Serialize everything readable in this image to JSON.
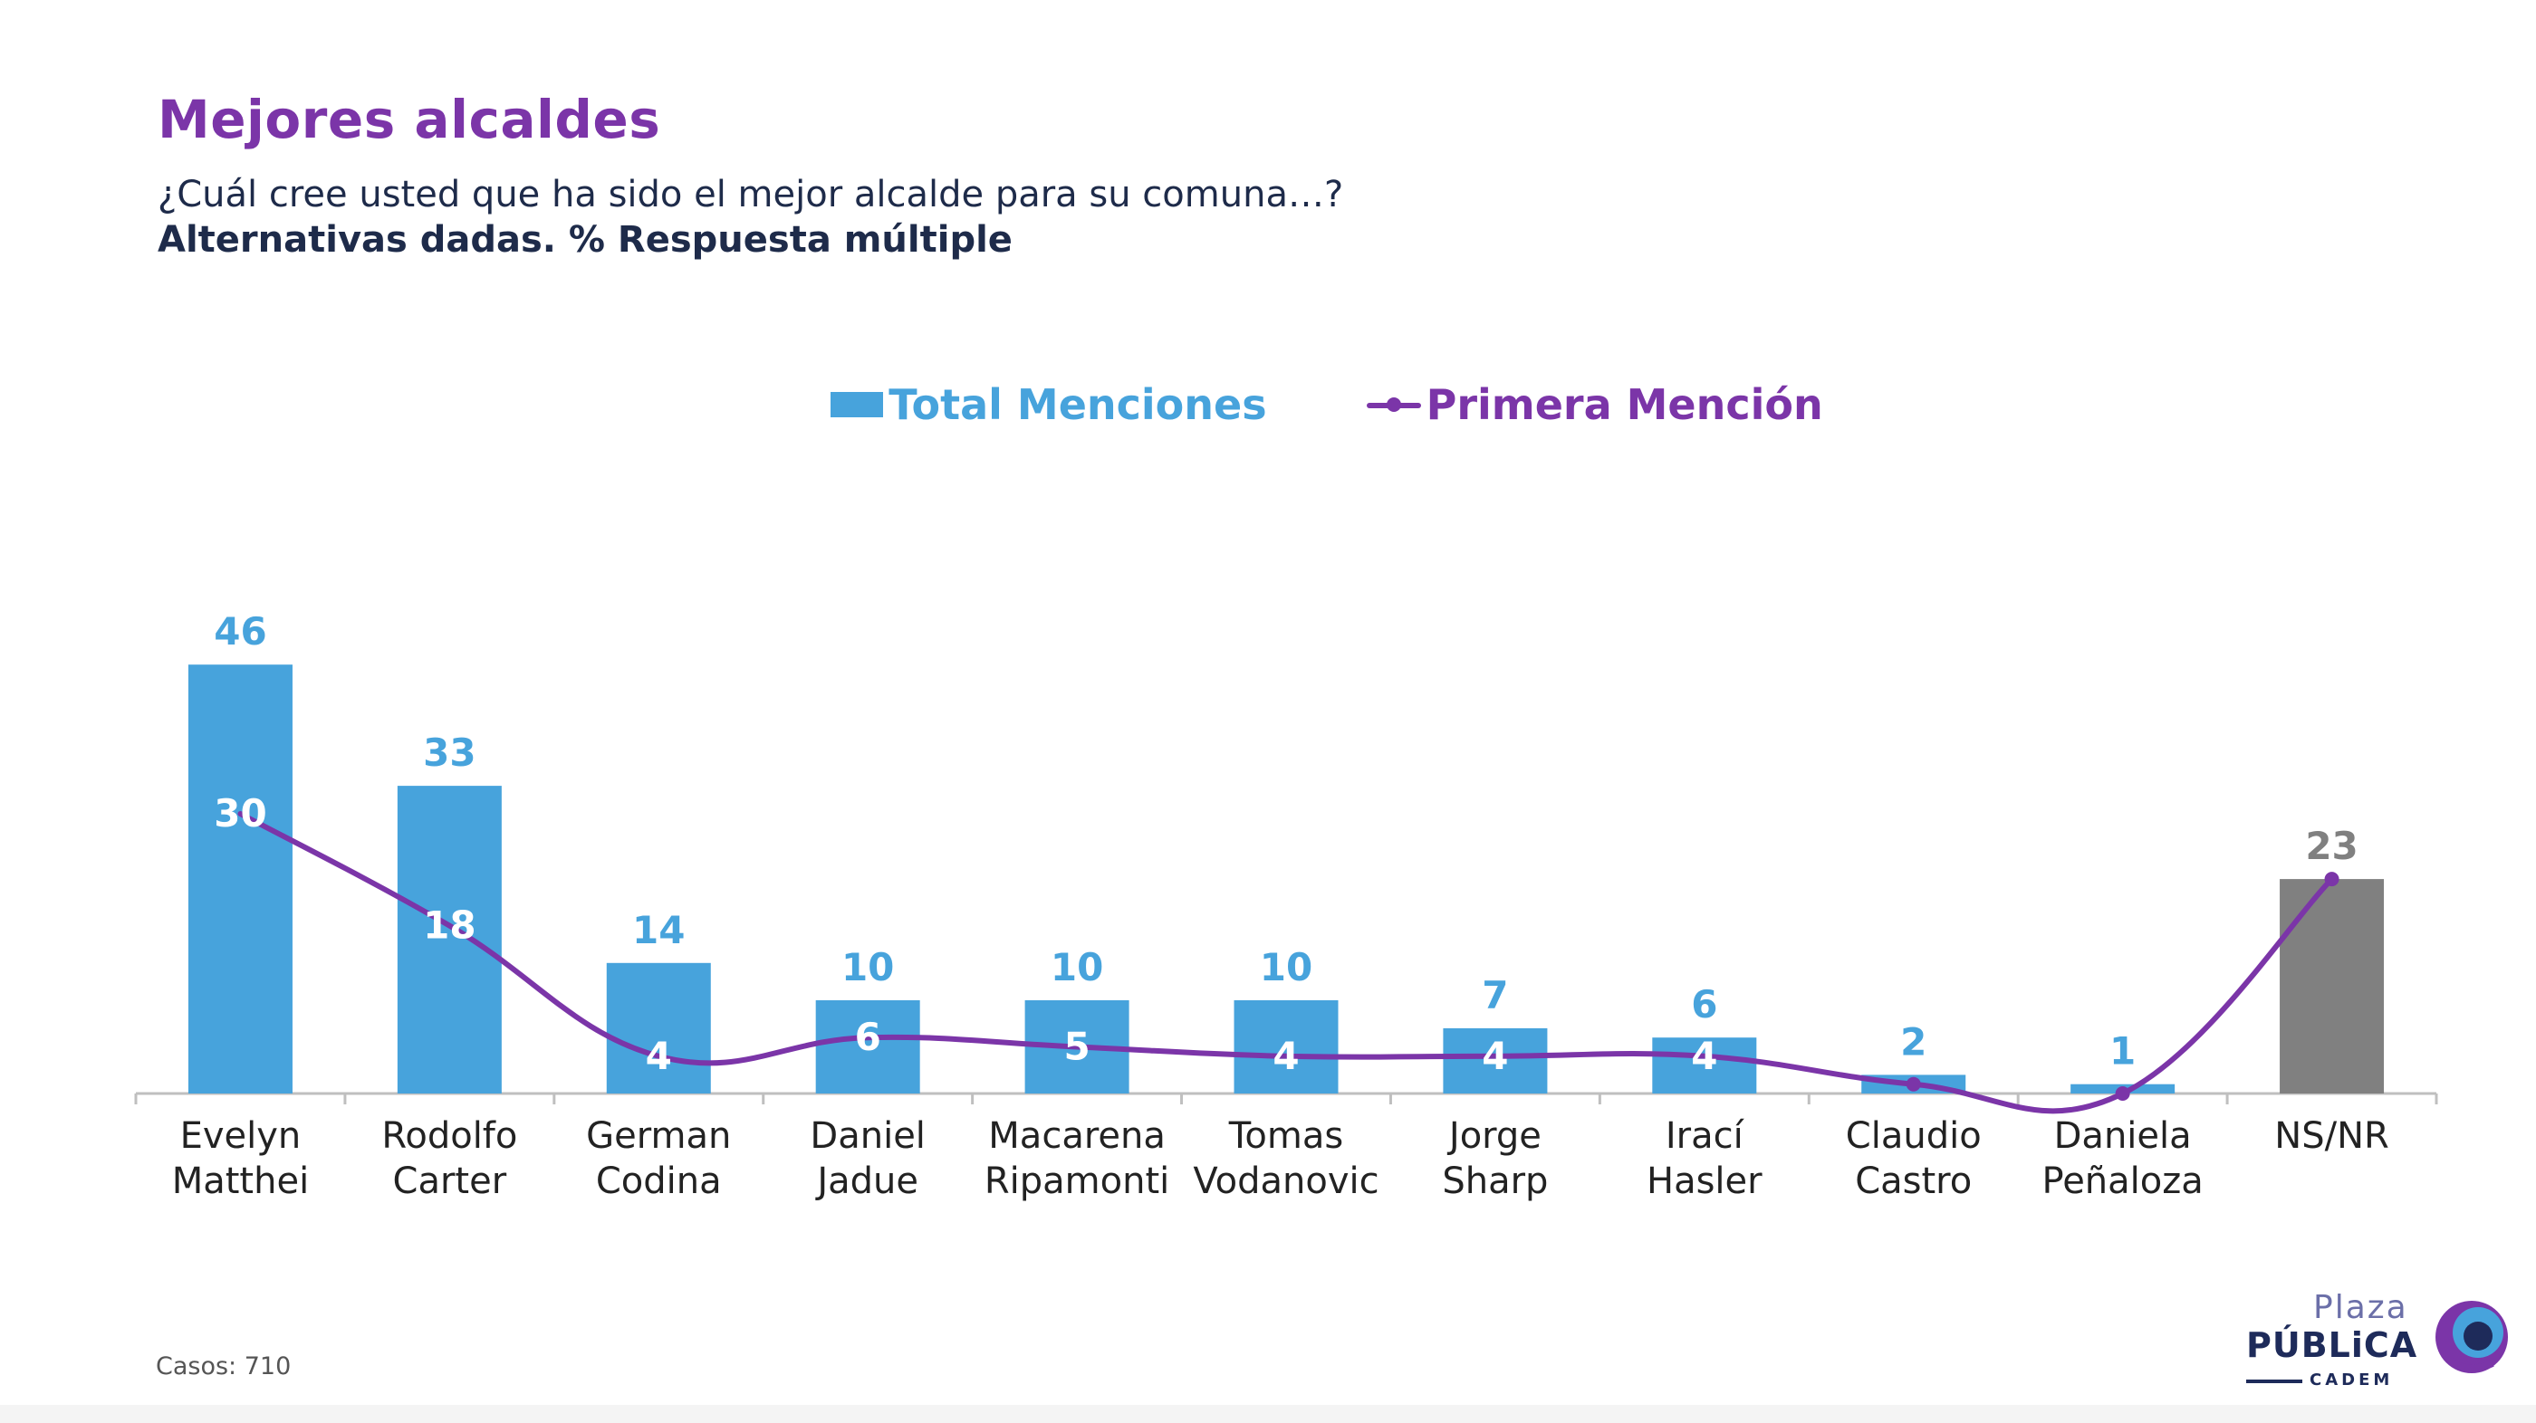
{
  "header": {
    "title": "Mejores alcaldes",
    "subtitle": "¿Cuál cree usted que ha sido el mejor alcalde para su comuna…?",
    "note": "Alternativas dadas. % Respuesta múltiple"
  },
  "legend": {
    "bar_label": "Total Menciones",
    "line_label": "Primera Mención"
  },
  "colors": {
    "bar": "#47a3dc",
    "bar_special": "#808080",
    "line": "#7b35a8",
    "title": "#7b35a8",
    "text_dark": "#1e2b4a"
  },
  "chart_data": {
    "type": "bar",
    "categories": [
      [
        "Evelyn",
        "Matthei"
      ],
      [
        "Rodolfo",
        "Carter"
      ],
      [
        "German",
        "Codina"
      ],
      [
        "Daniel",
        "Jadue"
      ],
      [
        "Macarena",
        "Ripamonti"
      ],
      [
        "Tomas",
        "Vodanovic"
      ],
      [
        "Jorge",
        "Sharp"
      ],
      [
        "Irací",
        "Hasler"
      ],
      [
        "Claudio",
        "Castro"
      ],
      [
        "Daniela",
        "Peñaloza"
      ],
      [
        "NS/NR"
      ]
    ],
    "series": [
      {
        "name": "Total Menciones",
        "type": "bar",
        "values": [
          46,
          33,
          14,
          10,
          10,
          10,
          7,
          6,
          2,
          1,
          23
        ]
      },
      {
        "name": "Primera Mención",
        "type": "line",
        "values": [
          30,
          18,
          4,
          6,
          5,
          4,
          4,
          4,
          1,
          0,
          23
        ],
        "labels": [
          "30",
          "18",
          "4",
          "6",
          "5",
          "4",
          "4",
          "4",
          "",
          "",
          ""
        ]
      }
    ],
    "highlight_category": "NS/NR",
    "ylim": [
      0,
      50
    ]
  },
  "footer": {
    "cases": "Casos: 710"
  },
  "logo": {
    "line1": "Plaza",
    "line2": "PÚBLiCA",
    "line3": "CADEM"
  }
}
